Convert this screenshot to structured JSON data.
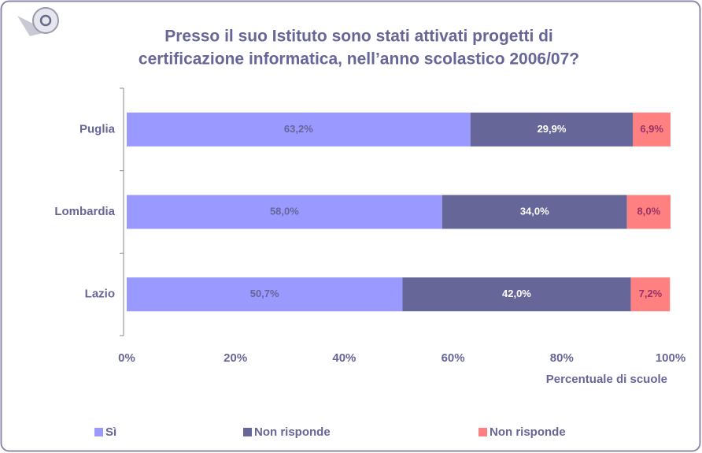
{
  "chart_data": {
    "type": "stacked_barh",
    "title": [
      "Presso il suo Istituto sono stati attivati progetti di",
      "certificazione informatica, nell’anno scolastico 2006/07?"
    ],
    "categories": [
      "Puglia",
      "Lombardia",
      "Lazio"
    ],
    "series": [
      {
        "name": "Sì",
        "color": "#9999ff",
        "values": [
          63.2,
          58.0,
          50.7
        ],
        "value_labels": [
          "63,2%",
          "58,0%",
          "50,7%"
        ]
      },
      {
        "name": "Non risponde",
        "color": "#666699",
        "values": [
          29.9,
          34.0,
          42.0
        ],
        "value_labels": [
          "29,9%",
          "34,0%",
          "42,0%"
        ]
      },
      {
        "name": "Non risponde",
        "color": "#ff8080",
        "values": [
          6.9,
          8.0,
          7.2
        ],
        "value_labels": [
          "6,9%",
          "8,0%",
          "7,2%"
        ]
      }
    ],
    "xlim": [
      0,
      100
    ],
    "xticks": [
      {
        "value": 0,
        "label": "0%"
      },
      {
        "value": 20,
        "label": "20%"
      },
      {
        "value": 40,
        "label": "40%"
      },
      {
        "value": 60,
        "label": "60%"
      },
      {
        "value": 80,
        "label": "80%"
      },
      {
        "value": 100,
        "label": "100%"
      }
    ],
    "xlabel": "Percentuale di scuole",
    "grid": false,
    "legend": "bottom"
  }
}
